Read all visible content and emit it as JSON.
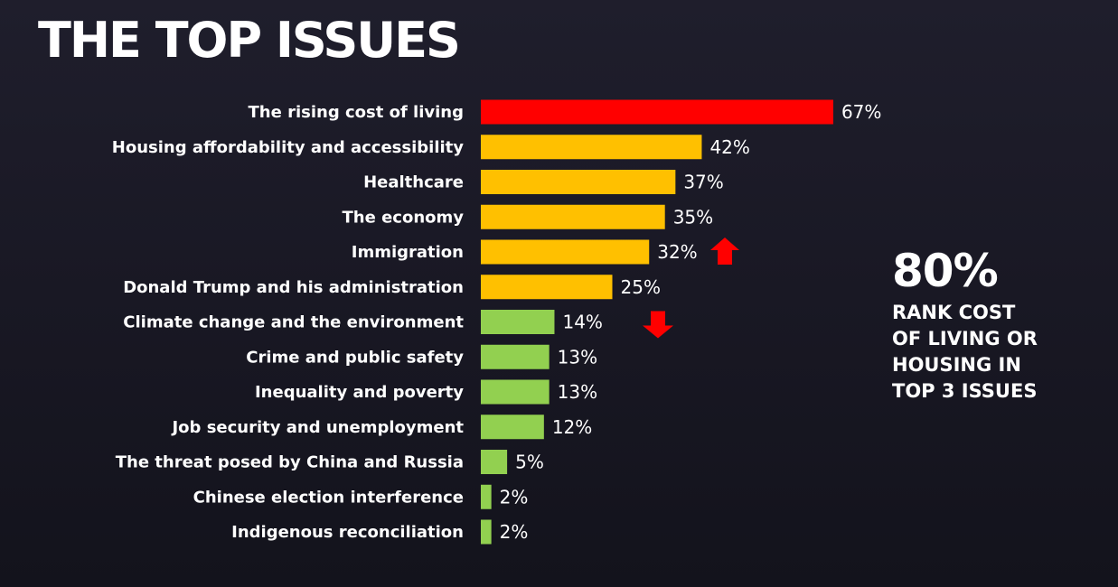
{
  "title": "THE TOP ISSUES",
  "callout": {
    "value": "80%",
    "text": "RANK COST\nOF LIVING OR\nHOUSING IN\nTOP 3 ISSUES"
  },
  "colors": {
    "top": "#ff0000",
    "high": "#ffc000",
    "low": "#92d050",
    "arrow": "#ff0000"
  },
  "chart_data": {
    "type": "bar",
    "orientation": "horizontal",
    "xlim": [
      0,
      100
    ],
    "value_suffix": "%",
    "grid": false,
    "categories": [
      "The rising cost of living",
      "Housing affordability and accessibility",
      "Healthcare",
      "The economy",
      "Immigration",
      "Donald Trump and his administration",
      "Climate change and the environment",
      "Crime and public safety",
      "Inequality and poverty",
      "Job security and unemployment",
      "The threat posed by China and Russia",
      "Chinese election interference",
      "Indigenous reconciliation"
    ],
    "values": [
      67,
      42,
      37,
      35,
      32,
      25,
      14,
      13,
      13,
      12,
      5,
      2,
      2
    ],
    "bar_colors": [
      "top",
      "high",
      "high",
      "high",
      "high",
      "high",
      "low",
      "low",
      "low",
      "low",
      "low",
      "low",
      "low"
    ],
    "trend_markers": [
      {
        "category": "Immigration",
        "direction": "up"
      },
      {
        "category": "Climate change and the environment",
        "direction": "down"
      }
    ]
  }
}
